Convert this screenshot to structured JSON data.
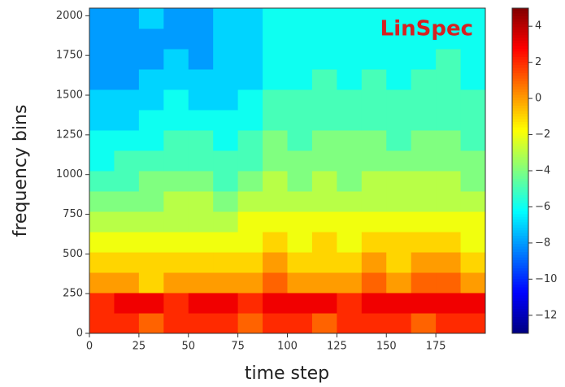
{
  "chart_data": {
    "type": "heatmap",
    "annotation": "LinSpec",
    "xlabel": "time step",
    "ylabel": "frequency bins",
    "x": [
      0,
      12.5,
      25,
      37.5,
      50,
      62.5,
      75,
      87.5,
      100,
      112.5,
      125,
      137.5,
      150,
      162.5,
      175,
      187.5,
      200
    ],
    "y": [
      0,
      128,
      256,
      384,
      512,
      640,
      768,
      896,
      1024,
      1152,
      1280,
      1408,
      1536,
      1664,
      1792,
      1920,
      2048
    ],
    "values": [
      [
        2,
        2,
        1,
        2,
        2,
        2,
        1,
        2,
        2,
        1,
        2,
        2,
        2,
        1,
        2,
        2
      ],
      [
        2,
        3,
        3,
        2,
        3,
        3,
        2,
        3,
        3,
        3,
        2,
        3,
        3,
        3,
        3,
        3
      ],
      [
        0,
        0,
        -1,
        0,
        0,
        0,
        0,
        1,
        0,
        0,
        0,
        1,
        0,
        1,
        1,
        0
      ],
      [
        -1,
        -1,
        -1,
        -1,
        -1,
        -1,
        -1,
        0,
        -1,
        -1,
        -1,
        0,
        -1,
        0,
        0,
        -1
      ],
      [
        -2,
        -2,
        -2,
        -2,
        -2,
        -2,
        -2,
        -1,
        -2,
        -1,
        -2,
        -1,
        -1,
        -1,
        -1,
        -2
      ],
      [
        -3,
        -3,
        -3,
        -3,
        -3,
        -3,
        -2,
        -2,
        -2,
        -2,
        -2,
        -2,
        -2,
        -2,
        -2,
        -2
      ],
      [
        -4,
        -4,
        -4,
        -3,
        -3,
        -4,
        -3,
        -3,
        -3,
        -3,
        -3,
        -3,
        -3,
        -3,
        -3,
        -3
      ],
      [
        -5,
        -5,
        -4,
        -4,
        -4,
        -5,
        -4,
        -3,
        -4,
        -3,
        -4,
        -3,
        -3,
        -3,
        -3,
        -4
      ],
      [
        -6,
        -5,
        -5,
        -5,
        -5,
        -5,
        -5,
        -4,
        -4,
        -4,
        -4,
        -4,
        -4,
        -4,
        -4,
        -4
      ],
      [
        -6,
        -6,
        -6,
        -5,
        -5,
        -6,
        -5,
        -4,
        -5,
        -4,
        -4,
        -4,
        -5,
        -4,
        -4,
        -5
      ],
      [
        -7,
        -7,
        -6,
        -6,
        -6,
        -6,
        -6,
        -5,
        -5,
        -5,
        -5,
        -5,
        -5,
        -5,
        -5,
        -5
      ],
      [
        -7,
        -7,
        -7,
        -6,
        -7,
        -7,
        -6,
        -5,
        -5,
        -5,
        -5,
        -5,
        -5,
        -5,
        -5,
        -5
      ],
      [
        -8,
        -8,
        -7,
        -7,
        -7,
        -7,
        -7,
        -6,
        -6,
        -5,
        -6,
        -5,
        -6,
        -5,
        -5,
        -6
      ],
      [
        -8,
        -8,
        -8,
        -7,
        -8,
        -7,
        -7,
        -6,
        -6,
        -6,
        -6,
        -6,
        -6,
        -6,
        -5,
        -6
      ],
      [
        -8,
        -8,
        -8,
        -8,
        -8,
        -7,
        -7,
        -6,
        -6,
        -6,
        -6,
        -6,
        -6,
        -6,
        -6,
        -6
      ],
      [
        -8,
        -8,
        -7,
        -8,
        -8,
        -7,
        -7,
        -6,
        -6,
        -6,
        -6,
        -6,
        -6,
        -6,
        -6,
        -6
      ]
    ],
    "xlim": [
      0,
      200
    ],
    "ylim": [
      0,
      2048
    ],
    "xticks": [
      0,
      25,
      50,
      75,
      100,
      125,
      150,
      175
    ],
    "yticks": [
      0,
      250,
      500,
      750,
      1000,
      1250,
      1500,
      1750,
      2000
    ],
    "colorbar": {
      "colormap": "jet",
      "lim": [
        -13,
        5
      ],
      "ticks": [
        4,
        2,
        0,
        {
          "value": -2,
          "label": "−2"
        },
        {
          "value": -4,
          "label": "−4"
        },
        {
          "value": -6,
          "label": "−6"
        },
        {
          "value": -8,
          "label": "−8"
        },
        {
          "value": -10,
          "label": "−10"
        },
        {
          "value": -12,
          "label": "−12"
        }
      ]
    }
  }
}
